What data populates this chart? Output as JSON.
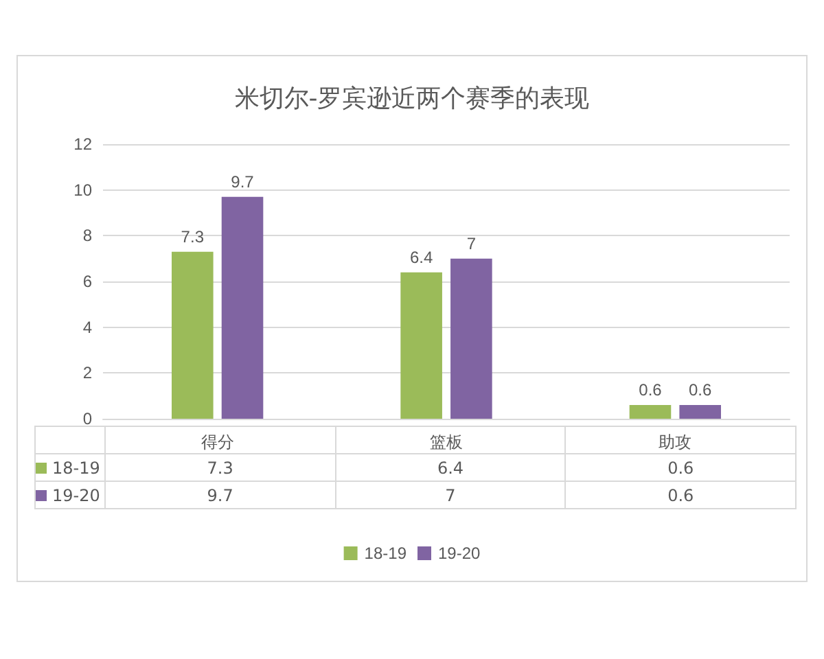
{
  "chart_data": {
    "type": "bar",
    "title": "米切尔-罗宾逊近两个赛季的表现",
    "categories": [
      "得分",
      "篮板",
      "助攻"
    ],
    "series": [
      {
        "name": "18-19",
        "color": "#9bbb59",
        "values": [
          7.3,
          6.4,
          0.6
        ],
        "value_labels": [
          "7.3",
          "6.4",
          "0.6"
        ]
      },
      {
        "name": "19-20",
        "color": "#8064a2",
        "values": [
          9.7,
          7,
          0.6
        ],
        "value_labels": [
          "9.7",
          "7",
          "0.6"
        ]
      }
    ],
    "annotations": [
      "7.3",
      "6.4",
      "0.6",
      "9.7",
      "7",
      "0.6"
    ],
    "ylim": [
      0,
      12
    ],
    "yticks": [
      0,
      2,
      4,
      6,
      8,
      10,
      12
    ],
    "grid": "y",
    "legend": "bottom",
    "data_labels": true
  }
}
